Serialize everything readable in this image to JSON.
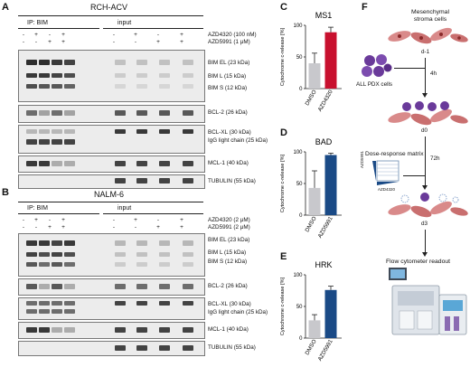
{
  "panels": {
    "A": {
      "letter": "A",
      "title": "RCH-ACV",
      "ip_label": "IP: BIM",
      "input_label": "input",
      "treatments": [
        "AZD4320 (100 nM)",
        "AZD5991 (1 μM)"
      ],
      "row1": [
        "-",
        "+",
        "-",
        "+",
        "-",
        "+",
        "-",
        "+"
      ],
      "row2": [
        "-",
        "-",
        "+",
        "+",
        "-",
        "-",
        "+",
        "+"
      ],
      "blots": [
        "BIM EL (23 kDa)",
        "BIM L (15 kDa)",
        "BIM S (12 kDa)",
        "BCL-2 (26 kDa)",
        "BCL-XL (30 kDa)",
        "IgG light chain (25 kDa)",
        "MCL-1 (40 kDa)",
        "TUBULIN (55 kDa)"
      ]
    },
    "B": {
      "letter": "B",
      "title": "NALM-6",
      "ip_label": "IP: BIM",
      "input_label": "input",
      "treatments": [
        "AZD4320 (2 μM)",
        "AZD5991 (2 μM)"
      ],
      "row1": [
        "-",
        "+",
        "-",
        "+",
        "-",
        "+",
        "-",
        "+"
      ],
      "row2": [
        "-",
        "-",
        "+",
        "+",
        "-",
        "-",
        "+",
        "+"
      ],
      "blots": [
        "BIM EL (23 kDa)",
        "BIM L (15 kDa)",
        "BIM S (12 kDa)",
        "BCL-2 (26 kDa)",
        "BCL-XL (30 kDa)",
        "IgG light chain (25 kDa)",
        "MCL-1 (40 kDa)",
        "TUBULIN (55 kDa)"
      ]
    },
    "C": {
      "letter": "C",
      "title": "MS1"
    },
    "D": {
      "letter": "D",
      "title": "BAD"
    },
    "E": {
      "letter": "E",
      "title": "HRK"
    },
    "F": {
      "letter": "F",
      "mesenchymal": "Mesenchymal stroma cells",
      "d_minus1": "d-1",
      "pdx": "ALL PDX cells",
      "h4": "4h",
      "d0": "d0",
      "dose_matrix": "Dose-response matrix",
      "azd5991": "AZD5991",
      "azd4320": "AZD4320",
      "h72": "72h",
      "d3": "d3",
      "flow": "Flow cytometer readout"
    }
  },
  "chart_data": [
    {
      "type": "bar",
      "title": "MS1",
      "categories": [
        "DMSO",
        "AZD4320"
      ],
      "values": [
        40,
        89
      ],
      "errors": [
        16,
        8
      ],
      "colors": [
        "#c8c8cc",
        "#c8102e"
      ],
      "ylabel": "Cytochrome c-release [%]",
      "ylim": [
        0,
        100
      ],
      "yticks": [
        "0",
        "50",
        "100"
      ]
    },
    {
      "type": "bar",
      "title": "BAD",
      "categories": [
        "DMSO",
        "AZD5991"
      ],
      "values": [
        43,
        95
      ],
      "errors": [
        27,
        3
      ],
      "colors": [
        "#c8c8cc",
        "#1a4a86"
      ],
      "ylabel": "Cytochrome c-release [%]",
      "ylim": [
        0,
        100
      ],
      "yticks": [
        "0",
        "50",
        "100"
      ]
    },
    {
      "type": "bar",
      "title": "HRK",
      "categories": [
        "DMSO",
        "AZD5991"
      ],
      "values": [
        28,
        76
      ],
      "errors": [
        9,
        6
      ],
      "colors": [
        "#c8c8cc",
        "#1a4a86"
      ],
      "ylabel": "Cytochrome c-release [%]",
      "ylim": [
        0,
        100
      ],
      "yticks": [
        "0",
        "50",
        "100"
      ]
    }
  ]
}
